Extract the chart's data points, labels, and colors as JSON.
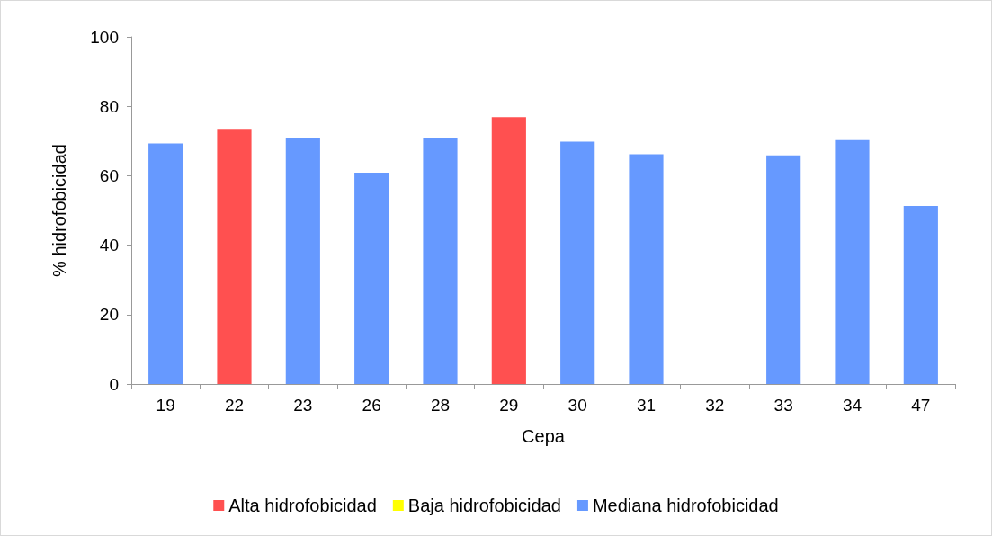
{
  "chart_data": {
    "type": "bar",
    "xlabel": "Cepa",
    "ylabel": "% hidrofobicidad",
    "categories": [
      "19",
      "22",
      "23",
      "26",
      "28",
      "29",
      "30",
      "31",
      "32",
      "33",
      "34",
      "47"
    ],
    "series": [
      {
        "name": "Alta hidrofobicidad",
        "color": "#ff5050",
        "values": [
          null,
          73.5,
          null,
          null,
          null,
          76.9,
          null,
          null,
          null,
          null,
          null,
          null
        ]
      },
      {
        "name": "Baja hidrofobicidad",
        "color": "#ffff00",
        "values": [
          null,
          null,
          null,
          null,
          null,
          null,
          null,
          null,
          0,
          null,
          null,
          null
        ]
      },
      {
        "name": "Mediana hidrofobicidad",
        "color": "#6699ff",
        "values": [
          69.3,
          null,
          71.0,
          60.9,
          70.8,
          null,
          69.8,
          66.2,
          null,
          65.9,
          70.3,
          51.3
        ]
      }
    ],
    "stacked": true,
    "ylim": [
      0,
      100
    ],
    "yticks": [
      0,
      20,
      40,
      60,
      80,
      100
    ],
    "grid": false,
    "legend": "bottom"
  }
}
